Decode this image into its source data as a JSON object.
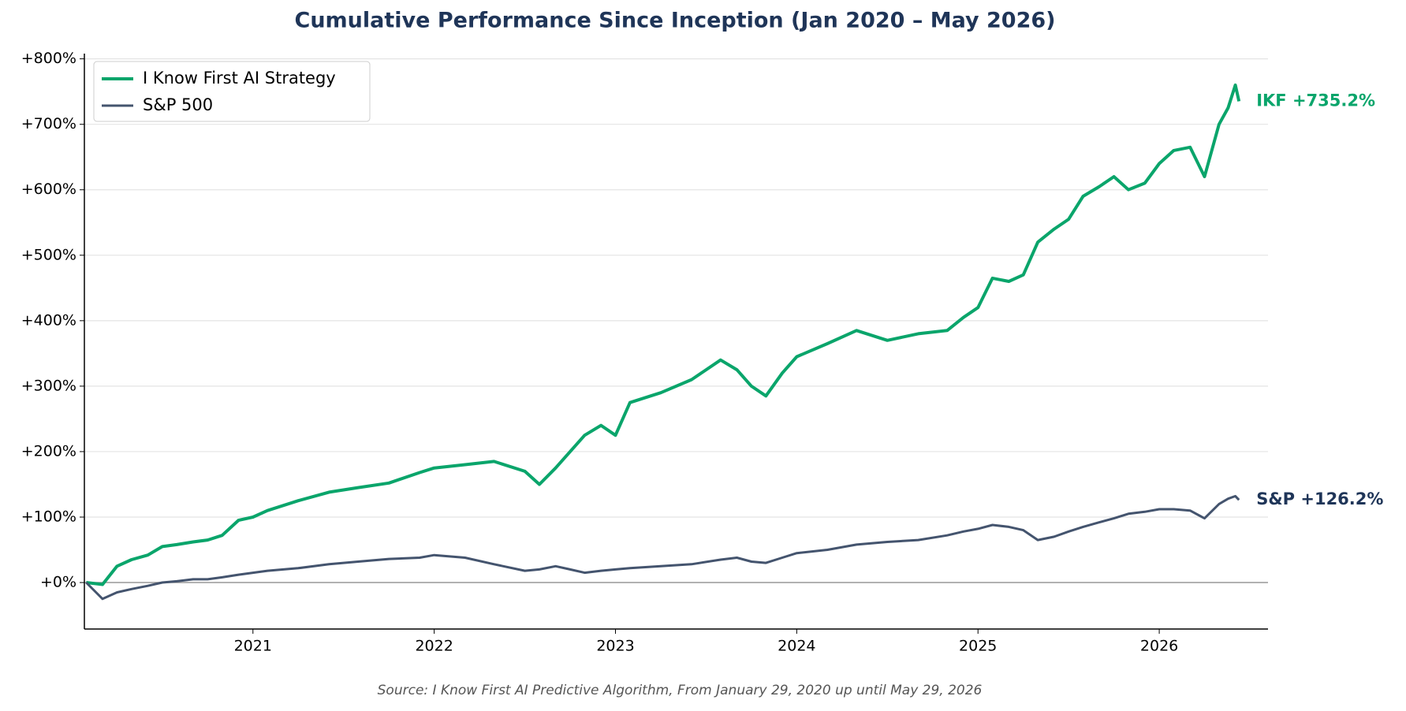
{
  "chart_data": {
    "type": "line",
    "title": "Cumulative Performance Since Inception (Jan 2020 – May 2026)",
    "source": "Source: I Know First AI Predictive Algorithm, From January 29, 2020 up until May 29, 2026",
    "x": [
      2020.08,
      2020.17,
      2020.25,
      2020.33,
      2020.42,
      2020.5,
      2020.58,
      2020.67,
      2020.75,
      2020.83,
      2020.92,
      2021.0,
      2021.08,
      2021.25,
      2021.42,
      2021.58,
      2021.75,
      2021.92,
      2022.0,
      2022.17,
      2022.33,
      2022.5,
      2022.58,
      2022.67,
      2022.75,
      2022.83,
      2022.92,
      2023.0,
      2023.08,
      2023.25,
      2023.42,
      2023.58,
      2023.67,
      2023.75,
      2023.83,
      2023.92,
      2024.0,
      2024.17,
      2024.33,
      2024.5,
      2024.67,
      2024.83,
      2024.92,
      2025.0,
      2025.08,
      2025.17,
      2025.25,
      2025.33,
      2025.42,
      2025.5,
      2025.58,
      2025.67,
      2025.75,
      2025.83,
      2025.92,
      2026.0,
      2026.08,
      2026.17,
      2026.25,
      2026.33,
      2026.38,
      2026.42,
      2026.44
    ],
    "series": [
      {
        "name": "I Know First AI Strategy",
        "color": "#0aa56b",
        "width": 4,
        "values": [
          0,
          -3,
          25,
          35,
          42,
          55,
          58,
          62,
          65,
          72,
          95,
          100,
          110,
          125,
          138,
          145,
          152,
          168,
          175,
          180,
          185,
          170,
          150,
          175,
          200,
          225,
          240,
          225,
          275,
          290,
          310,
          340,
          325,
          300,
          285,
          320,
          345,
          365,
          385,
          370,
          380,
          385,
          405,
          420,
          465,
          460,
          470,
          520,
          540,
          555,
          590,
          605,
          620,
          600,
          610,
          640,
          660,
          665,
          620,
          700,
          725,
          760,
          735.2
        ]
      },
      {
        "name": "S&P 500",
        "color": "#44546e",
        "width": 3,
        "values": [
          0,
          -25,
          -15,
          -10,
          -5,
          0,
          2,
          5,
          5,
          8,
          12,
          15,
          18,
          22,
          28,
          32,
          36,
          38,
          42,
          38,
          28,
          18,
          20,
          25,
          20,
          15,
          18,
          20,
          22,
          25,
          28,
          35,
          38,
          32,
          30,
          38,
          45,
          50,
          58,
          62,
          65,
          72,
          78,
          82,
          88,
          85,
          80,
          65,
          70,
          78,
          85,
          92,
          98,
          105,
          108,
          112,
          112,
          110,
          98,
          120,
          128,
          132,
          126.2
        ]
      }
    ],
    "end_labels": [
      {
        "text": "IKF +735.2%",
        "value": 735.2,
        "color": "#0aa56b"
      },
      {
        "text": "S&P +126.2%",
        "value": 126.2,
        "color": "#1f3558"
      }
    ],
    "xlim": [
      2020.07,
      2026.6
    ],
    "xticks": [
      2021,
      2022,
      2023,
      2024,
      2025,
      2026
    ],
    "ylim": [
      -71,
      808
    ],
    "yticks": [
      {
        "value": 0,
        "label": "+0%"
      },
      {
        "value": 100,
        "label": "+100%"
      },
      {
        "value": 200,
        "label": "+200%"
      },
      {
        "value": 300,
        "label": "+300%"
      },
      {
        "value": 400,
        "label": "+400%"
      },
      {
        "value": 500,
        "label": "+500%"
      },
      {
        "value": 600,
        "label": "+600%"
      },
      {
        "value": 700,
        "label": "+700%"
      },
      {
        "value": 800,
        "label": "+800%"
      }
    ],
    "grid": true,
    "legend": "upper left"
  }
}
